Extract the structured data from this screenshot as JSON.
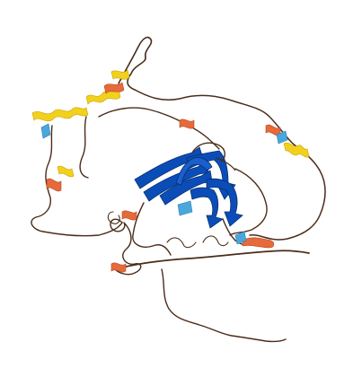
{
  "image": {
    "subject": "protein-structure-ribbon",
    "colors": {
      "background": "#ffffff",
      "coil": "#4a2c1a",
      "very_high_confidence": "#0b4db8",
      "confident": "#4aa7dc",
      "low_confidence": "#f2d11c",
      "very_low_confidence": "#e66a3a"
    }
  }
}
